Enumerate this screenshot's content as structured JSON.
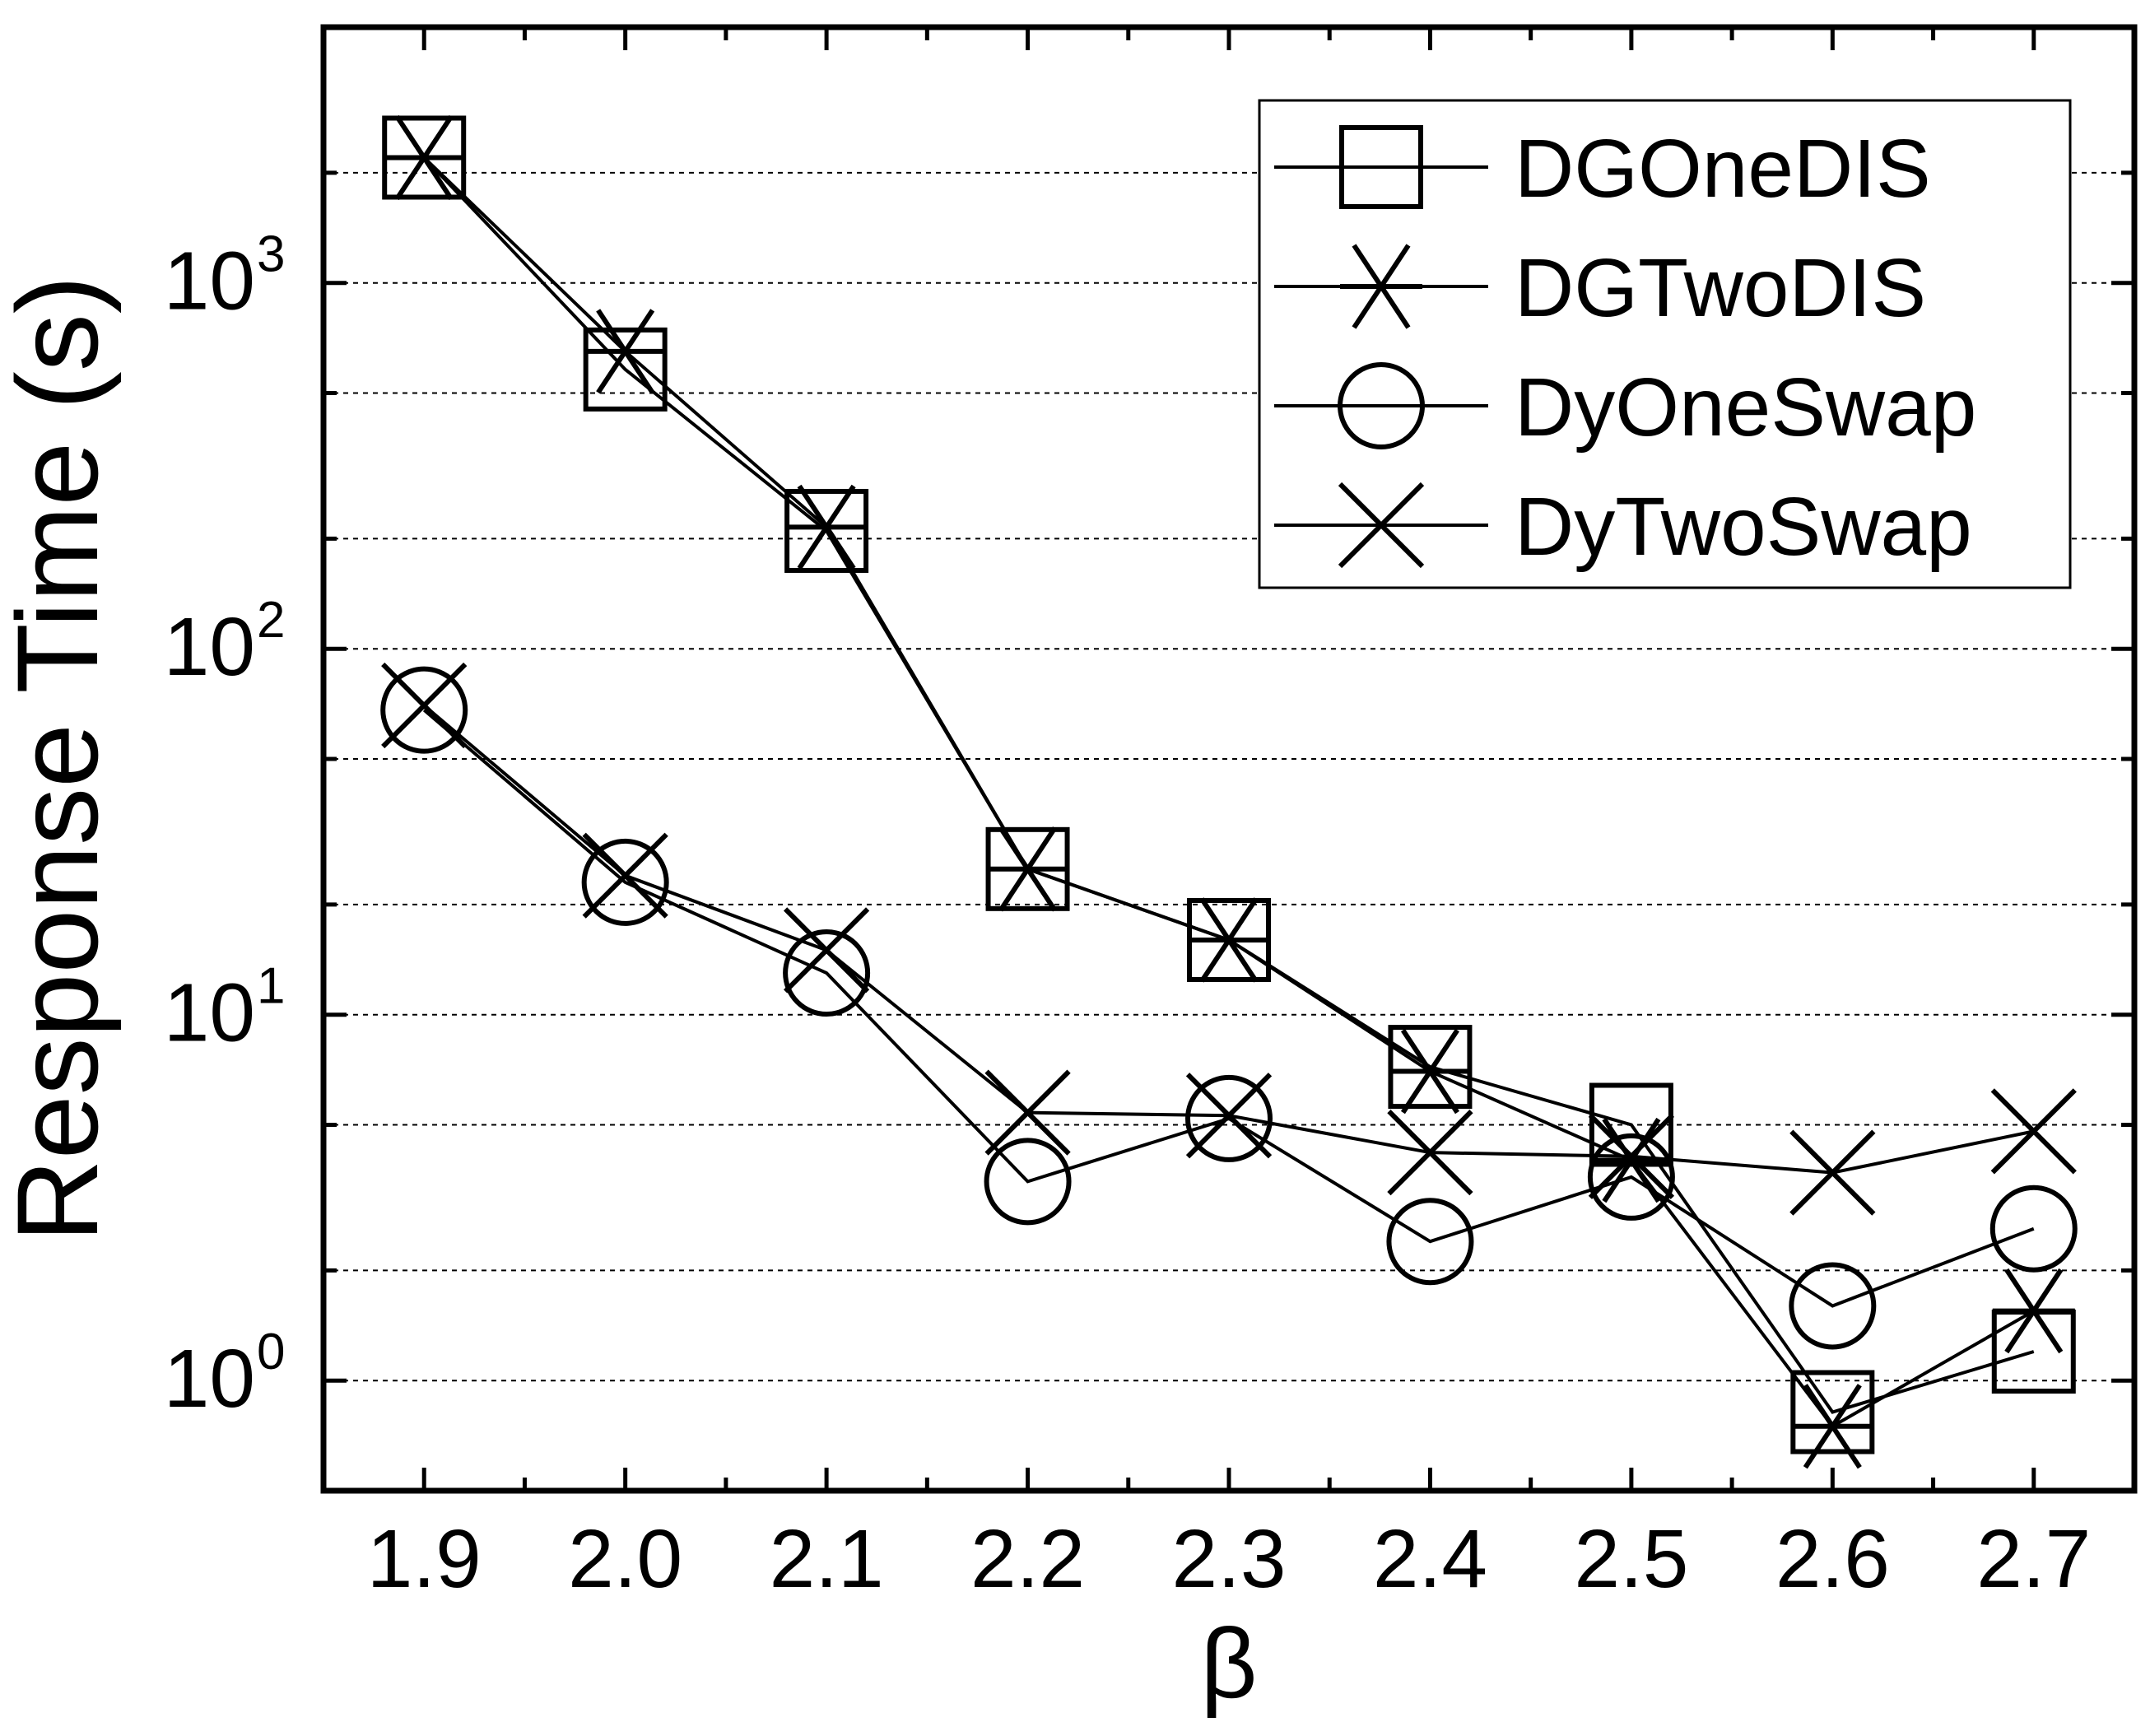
{
  "chart_data": {
    "type": "line",
    "title": "",
    "xlabel": "β",
    "ylabel": "Response Time (s)",
    "yscale": "log",
    "ylim": [
      0.5,
      5000
    ],
    "xlim": [
      1.85,
      2.75
    ],
    "x": [
      1.9,
      2.0,
      2.1,
      2.2,
      2.3,
      2.4,
      2.5,
      2.6,
      2.7
    ],
    "x_tick_labels": [
      "1.9",
      "2.0",
      "2.1",
      "2.2",
      "2.3",
      "2.4",
      "2.5",
      "2.6",
      "2.7"
    ],
    "y_ticks": [
      {
        "value": 1,
        "base": "10",
        "exp": "0"
      },
      {
        "value": 10,
        "base": "10",
        "exp": "1"
      },
      {
        "value": 100,
        "base": "10",
        "exp": "2"
      },
      {
        "value": 1000,
        "base": "10",
        "exp": "3"
      }
    ],
    "grid": true,
    "legend_position": "top-right",
    "series": [
      {
        "name": "DGOneDIS",
        "marker": "square",
        "values": [
          2200,
          580,
          210,
          25,
          16,
          7.2,
          5.0,
          0.82,
          1.2
        ]
      },
      {
        "name": "DGTwoDIS",
        "marker": "asterisk",
        "values": [
          2200,
          650,
          215,
          25,
          16,
          7.0,
          4.0,
          0.75,
          1.55
        ]
      },
      {
        "name": "DyOneSwap",
        "marker": "circle",
        "values": [
          68,
          23,
          13,
          3.5,
          5.2,
          2.4,
          3.6,
          1.6,
          2.6
        ]
      },
      {
        "name": "DyTwoSwap",
        "marker": "x",
        "values": [
          70,
          24,
          15,
          5.4,
          5.3,
          4.2,
          4.1,
          3.7,
          4.8
        ]
      }
    ]
  }
}
